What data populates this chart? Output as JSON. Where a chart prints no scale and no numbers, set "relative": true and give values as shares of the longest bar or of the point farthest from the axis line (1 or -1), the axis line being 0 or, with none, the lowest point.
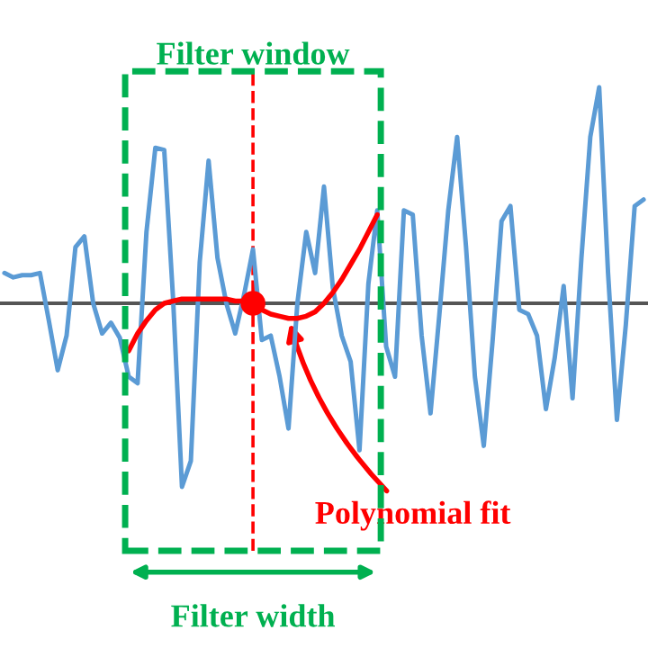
{
  "chart_data": {
    "type": "line",
    "relative": true,
    "categories": [
      null,
      null,
      null,
      null,
      null,
      null,
      null,
      null,
      null,
      null,
      null,
      null,
      null,
      null,
      null,
      null,
      null,
      null,
      null,
      null,
      null,
      null,
      null,
      null,
      null,
      null,
      null,
      null,
      null,
      null,
      null,
      null,
      null,
      null,
      null,
      null,
      null,
      null,
      null,
      null,
      null,
      null,
      null,
      null,
      null,
      null,
      null,
      null,
      null,
      null,
      null,
      null,
      null,
      null,
      null,
      null,
      null,
      null,
      null,
      null,
      null,
      null,
      null,
      null,
      null,
      null,
      null,
      null,
      null,
      null,
      null,
      null,
      null
    ],
    "series": [
      {
        "color": "#5b9bd5",
        "values": [
          0.14,
          0.12,
          0.13,
          0.13,
          0.14,
          -0.08,
          -0.31,
          -0.15,
          0.26,
          0.31,
          0,
          -0.14,
          -0.09,
          -0.16,
          -0.34,
          -0.37,
          0.33,
          0.72,
          0.71,
          0.02,
          -0.85,
          -0.73,
          0.19,
          0.66,
          0.21,
          0,
          -0.14,
          0.04,
          0.25,
          -0.17,
          -0.15,
          -0.34,
          -0.58,
          0,
          0.33,
          0.14,
          0.54,
          0.07,
          -0.15,
          -0.27,
          -0.68,
          0.09,
          0.43,
          -0.2,
          -0.34,
          0.43,
          0.41,
          -0.15,
          -0.51,
          -0.05,
          0.43,
          0.77,
          0.26,
          -0.34,
          -0.66,
          -0.17,
          0.38,
          0.45,
          -0.03,
          -0.05,
          -0.15,
          -0.49,
          -0.25,
          0.08,
          -0.44,
          0.21,
          0.77,
          1,
          0.14,
          -0.54,
          -0.1,
          0.45,
          0.48
        ]
      },
      {
        "type": "line",
        "color": "#ff0000",
        "values": [
          null,
          null,
          null,
          null,
          null,
          null,
          null,
          null,
          null,
          null,
          null,
          null,
          null,
          null,
          -0.22,
          -0.14,
          -0.08,
          -0.03,
          0,
          0.01,
          0.02,
          0.02,
          0.02,
          0.02,
          0.02,
          0.02,
          0.01,
          0.01,
          0,
          -0.03,
          -0.05,
          -0.06,
          -0.07,
          -0.07,
          -0.06,
          -0.04,
          0,
          0.05,
          0.11,
          0.18,
          0.25,
          0.33,
          0.41,
          null,
          null,
          null,
          null,
          null,
          null,
          null,
          null,
          null,
          null,
          null,
          null,
          null,
          null,
          null,
          null,
          null,
          null,
          null,
          null,
          null,
          null,
          null,
          null,
          null,
          null,
          null,
          null,
          null,
          null
        ]
      }
    ],
    "annotations": [
      "Filter window",
      "Polynomial fit",
      "Filter width"
    ]
  }
}
